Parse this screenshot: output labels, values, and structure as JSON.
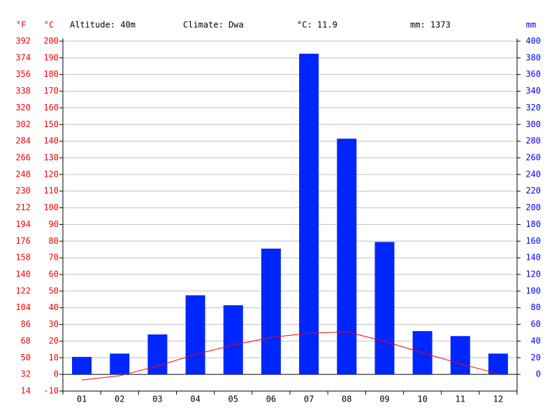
{
  "chart_data": {
    "type": "bar",
    "header": [
      "Altitude: 40m",
      "Climate: Dwa",
      "°C: 11.9",
      "mm: 1373"
    ],
    "f_axis_label": "°F",
    "y_axis_label": "°C",
    "y2_axis_label": "mm",
    "categories": [
      "01",
      "02",
      "03",
      "04",
      "05",
      "06",
      "07",
      "08",
      "09",
      "10",
      "11",
      "12"
    ],
    "series": [
      {
        "type": "bar",
        "axis": "y2",
        "color": "#0026ff",
        "values": [
          21,
          25,
          48,
          95,
          83,
          151,
          385,
          283,
          159,
          52,
          46,
          25
        ]
      },
      {
        "type": "line",
        "axis": "y",
        "color": "#ff0000",
        "values": [
          -3.4,
          -0.8,
          5.0,
          12.0,
          17.6,
          22.2,
          24.7,
          25.6,
          19.8,
          13.0,
          6.4,
          0.4
        ]
      }
    ],
    "ylim": [
      -10,
      200
    ],
    "yticks": [
      -10,
      0,
      10,
      20,
      30,
      40,
      50,
      60,
      70,
      80,
      90,
      100,
      110,
      120,
      130,
      140,
      150,
      160,
      170,
      180,
      190,
      200
    ],
    "y2lim": [
      -20,
      400
    ],
    "y2ticks": [
      0,
      20,
      40,
      60,
      80,
      100,
      120,
      140,
      160,
      180,
      200,
      220,
      240,
      260,
      280,
      300,
      320,
      340,
      360,
      380,
      400
    ],
    "fticks": [
      {
        "value": -10,
        "label": "14"
      },
      {
        "value": 0,
        "label": "32"
      },
      {
        "value": 10,
        "label": "50"
      },
      {
        "value": 20,
        "label": "68"
      },
      {
        "value": 30,
        "label": "86"
      },
      {
        "value": 40,
        "label": "104"
      },
      {
        "value": 50,
        "label": "122"
      },
      {
        "value": 60,
        "label": "140"
      },
      {
        "value": 70,
        "label": "158"
      },
      {
        "value": 80,
        "label": "176"
      },
      {
        "value": 90,
        "label": "194"
      },
      {
        "value": 100,
        "label": "212"
      },
      {
        "value": 110,
        "label": "230"
      },
      {
        "value": 120,
        "label": "248"
      },
      {
        "value": 130,
        "label": "266"
      },
      {
        "value": 140,
        "label": "284"
      },
      {
        "value": 150,
        "label": "302"
      },
      {
        "value": 160,
        "label": "320"
      },
      {
        "value": 170,
        "label": "338"
      },
      {
        "value": 180,
        "label": "356"
      },
      {
        "value": 190,
        "label": "374"
      },
      {
        "value": 200,
        "label": "392"
      }
    ],
    "grid": true,
    "y_color": "#ff0000",
    "y2_color": "#0000ff"
  }
}
